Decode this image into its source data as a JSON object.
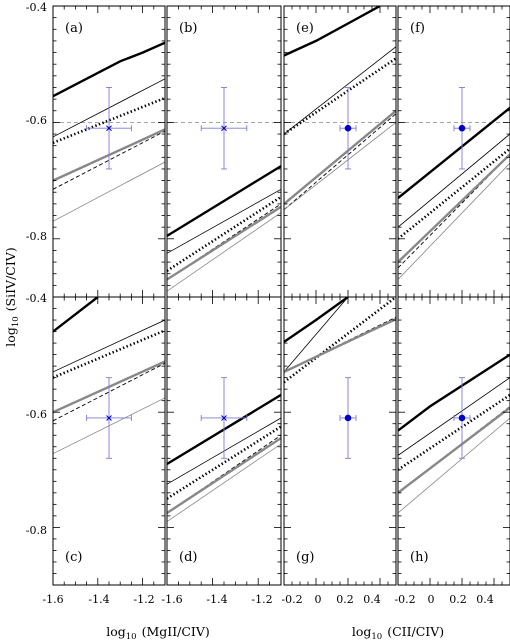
{
  "figure": {
    "ylabel": "log10 (SiIV/CIV)",
    "ylabel_parts": {
      "prefix": "log",
      "sub": "10",
      "rest": "(SiIV/CIV)"
    },
    "xlabel_left": {
      "prefix": "log",
      "sub": "10",
      "rest": "(MgII/CIV)"
    },
    "xlabel_right": {
      "prefix": "log",
      "sub": "10",
      "rest": "(CII/CIV)"
    }
  },
  "chart_data": [
    {
      "type": "line",
      "label": "(a)",
      "col": 0,
      "row": 0,
      "xlim": [
        -1.6,
        -1.1
      ],
      "ylim": [
        -0.9,
        -0.4
      ],
      "series": [
        {
          "style": "thick-black",
          "x": [
            -1.6,
            -1.5,
            -1.4,
            -1.3,
            -1.2,
            -1.1
          ],
          "y": [
            -0.555,
            -0.535,
            -0.515,
            -0.495,
            -0.48,
            -0.463
          ]
        },
        {
          "style": "thin-black",
          "x": [
            -1.6,
            -1.1
          ],
          "y": [
            -0.625,
            -0.525
          ]
        },
        {
          "style": "dotted-black",
          "x": [
            -1.6,
            -1.1
          ],
          "y": [
            -0.635,
            -0.558
          ]
        },
        {
          "style": "dashed-black",
          "x": [
            -1.6,
            -1.1
          ],
          "y": [
            -0.715,
            -0.615
          ]
        },
        {
          "style": "thick-gray",
          "x": [
            -1.6,
            -1.1
          ],
          "y": [
            -0.7,
            -0.612
          ]
        },
        {
          "style": "thin-gray",
          "x": [
            -1.6,
            -1.1
          ],
          "y": [
            -0.77,
            -0.668
          ]
        }
      ],
      "points": [
        {
          "x": -1.35,
          "y": -0.61,
          "xerr": 0.1,
          "yerr": 0.07,
          "marker": "cross"
        }
      ],
      "reference_y": -0.6
    },
    {
      "type": "line",
      "label": "(b)",
      "col": 1,
      "row": 0,
      "xlim": [
        -1.6,
        -1.1
      ],
      "ylim": [
        -0.9,
        -0.4
      ],
      "series": [
        {
          "style": "thick-black",
          "x": [
            -1.6,
            -1.1
          ],
          "y": [
            -0.795,
            -0.675
          ]
        },
        {
          "style": "thin-black",
          "x": [
            -1.6,
            -1.1
          ],
          "y": [
            -0.825,
            -0.715
          ]
        },
        {
          "style": "dotted-black",
          "x": [
            -1.6,
            -1.1
          ],
          "y": [
            -0.855,
            -0.728
          ]
        },
        {
          "style": "dashed-black",
          "x": [
            -1.6,
            -1.1
          ],
          "y": [
            -0.87,
            -0.74
          ]
        },
        {
          "style": "thick-gray",
          "x": [
            -1.6,
            -1.1
          ],
          "y": [
            -0.87,
            -0.745
          ]
        },
        {
          "style": "thin-gray",
          "x": [
            -1.6,
            -1.1
          ],
          "y": [
            -0.89,
            -0.755
          ]
        }
      ],
      "points": [
        {
          "x": -1.35,
          "y": -0.61,
          "xerr": 0.1,
          "yerr": 0.07,
          "marker": "cross"
        }
      ],
      "reference_y": -0.6
    },
    {
      "type": "line",
      "label": "(e)",
      "col": 2,
      "row": 0,
      "xlim": [
        -0.2,
        0.5
      ],
      "ylim": [
        -0.9,
        -0.4
      ],
      "series": [
        {
          "style": "thick-black",
          "x": [
            -0.2,
            0.0,
            0.2,
            0.4
          ],
          "y": [
            -0.485,
            -0.46,
            -0.43,
            -0.4
          ]
        },
        {
          "style": "thin-black",
          "x": [
            -0.2,
            0.5
          ],
          "y": [
            -0.62,
            -0.47
          ]
        },
        {
          "style": "dotted-black",
          "x": [
            -0.2,
            0.5
          ],
          "y": [
            -0.62,
            -0.49
          ]
        },
        {
          "style": "dashed-black",
          "x": [
            -0.2,
            0.5
          ],
          "y": [
            -0.75,
            -0.585
          ]
        },
        {
          "style": "thick-gray",
          "x": [
            -0.2,
            0.5
          ],
          "y": [
            -0.74,
            -0.58
          ]
        },
        {
          "style": "thin-gray",
          "x": [
            -0.2,
            0.5
          ],
          "y": [
            -0.75,
            -0.6
          ]
        }
      ],
      "points": [
        {
          "x": 0.2,
          "y": -0.61,
          "xerr": 0.05,
          "yerr": 0.07,
          "marker": "filled-dot"
        }
      ],
      "reference_y": -0.6
    },
    {
      "type": "line",
      "label": "(f)",
      "col": 3,
      "row": 0,
      "xlim": [
        -0.2,
        0.5
      ],
      "ylim": [
        -0.9,
        -0.4
      ],
      "series": [
        {
          "style": "thick-black",
          "x": [
            -0.2,
            0.5
          ],
          "y": [
            -0.73,
            -0.575
          ]
        },
        {
          "style": "thin-black",
          "x": [
            -0.2,
            0.5
          ],
          "y": [
            -0.78,
            -0.62
          ]
        },
        {
          "style": "dotted-black",
          "x": [
            -0.2,
            0.5
          ],
          "y": [
            -0.8,
            -0.645
          ]
        },
        {
          "style": "dashed-black",
          "x": [
            -0.2,
            0.5
          ],
          "y": [
            -0.85,
            -0.655
          ]
        },
        {
          "style": "thick-gray",
          "x": [
            -0.2,
            0.5
          ],
          "y": [
            -0.84,
            -0.655
          ]
        },
        {
          "style": "thin-gray",
          "x": [
            -0.2,
            0.5
          ],
          "y": [
            -0.87,
            -0.67
          ]
        }
      ],
      "points": [
        {
          "x": 0.2,
          "y": -0.61,
          "xerr": 0.05,
          "yerr": 0.07,
          "marker": "filled-dot"
        }
      ],
      "reference_y": -0.6
    },
    {
      "type": "line",
      "label": "(c)",
      "col": 0,
      "row": 1,
      "xlim": [
        -1.6,
        -1.1
      ],
      "ylim": [
        -0.9,
        -0.4
      ],
      "series": [
        {
          "style": "thick-black",
          "x": [
            -1.6,
            -1.5,
            -1.4
          ],
          "y": [
            -0.46,
            -0.43,
            -0.4
          ]
        },
        {
          "style": "thin-black",
          "x": [
            -1.6,
            -1.1
          ],
          "y": [
            -0.53,
            -0.44
          ]
        },
        {
          "style": "dotted-black",
          "x": [
            -1.6,
            -1.1
          ],
          "y": [
            -0.54,
            -0.458
          ]
        },
        {
          "style": "dashed-black",
          "x": [
            -1.6,
            -1.1
          ],
          "y": [
            -0.615,
            -0.515
          ]
        },
        {
          "style": "thick-gray",
          "x": [
            -1.6,
            -1.1
          ],
          "y": [
            -0.6,
            -0.512
          ]
        },
        {
          "style": "thin-gray",
          "x": [
            -1.6,
            -1.1
          ],
          "y": [
            -0.672,
            -0.575
          ]
        }
      ],
      "points": [
        {
          "x": -1.35,
          "y": -0.61,
          "xerr": 0.1,
          "yerr": 0.07,
          "marker": "cross"
        }
      ],
      "xticks": [
        -1.6,
        -1.4,
        -1.2
      ]
    },
    {
      "type": "line",
      "label": "(d)",
      "col": 1,
      "row": 1,
      "xlim": [
        -1.6,
        -1.1
      ],
      "ylim": [
        -0.9,
        -0.4
      ],
      "series": [
        {
          "style": "thick-black",
          "x": [
            -1.6,
            -1.1
          ],
          "y": [
            -0.69,
            -0.57
          ]
        },
        {
          "style": "thin-black",
          "x": [
            -1.6,
            -1.1
          ],
          "y": [
            -0.725,
            -0.61
          ]
        },
        {
          "style": "dotted-black",
          "x": [
            -1.6,
            -1.1
          ],
          "y": [
            -0.75,
            -0.625
          ]
        },
        {
          "style": "dashed-black",
          "x": [
            -1.6,
            -1.1
          ],
          "y": [
            -0.775,
            -0.64
          ]
        },
        {
          "style": "thick-gray",
          "x": [
            -1.6,
            -1.1
          ],
          "y": [
            -0.775,
            -0.645
          ]
        },
        {
          "style": "thin-gray",
          "x": [
            -1.6,
            -1.1
          ],
          "y": [
            -0.79,
            -0.655
          ]
        }
      ],
      "points": [
        {
          "x": -1.35,
          "y": -0.61,
          "xerr": 0.1,
          "yerr": 0.07,
          "marker": "cross"
        }
      ],
      "xticks": [
        -1.6,
        -1.4,
        -1.2
      ]
    },
    {
      "type": "line",
      "label": "(g)",
      "col": 2,
      "row": 1,
      "xlim": [
        -0.2,
        0.5
      ],
      "ylim": [
        -0.9,
        -0.4
      ],
      "series": [
        {
          "style": "thick-black",
          "x": [
            -0.2,
            0.0,
            0.2
          ],
          "y": [
            -0.478,
            -0.44,
            -0.4
          ]
        },
        {
          "style": "thin-black",
          "x": [
            -0.2,
            0.2
          ],
          "y": [
            -0.53,
            -0.4
          ]
        },
        {
          "style": "dotted-black",
          "x": [
            -0.2,
            0.5
          ],
          "y": [
            -0.548,
            -0.4
          ]
        },
        {
          "style": "dashed-black",
          "x": [
            -0.2,
            0.5
          ],
          "y": [
            -0.53,
            -0.435
          ]
        },
        {
          "style": "thick-gray",
          "x": [
            -0.2,
            0.5
          ],
          "y": [
            -0.53,
            -0.438
          ]
        },
        {
          "style": "thin-gray",
          "x": [
            -0.2,
            0.5
          ],
          "y": [
            -0.53,
            -0.44
          ]
        }
      ],
      "points": [
        {
          "x": 0.2,
          "y": -0.61,
          "xerr": 0.05,
          "yerr": 0.07,
          "marker": "filled-dot"
        }
      ],
      "xticks": [
        -0.2,
        0.0,
        0.2,
        0.4
      ]
    },
    {
      "type": "line",
      "label": "(h)",
      "col": 3,
      "row": 1,
      "xlim": [
        -0.2,
        0.5
      ],
      "ylim": [
        -0.9,
        -0.4
      ],
      "series": [
        {
          "style": "thick-black",
          "x": [
            -0.2,
            0.0,
            0.5
          ],
          "y": [
            -0.632,
            -0.59,
            -0.5
          ]
        },
        {
          "style": "thin-black",
          "x": [
            -0.2,
            0.5
          ],
          "y": [
            -0.675,
            -0.54
          ]
        },
        {
          "style": "dotted-black",
          "x": [
            -0.2,
            0.5
          ],
          "y": [
            -0.7,
            -0.57
          ]
        },
        {
          "style": "dashed-black",
          "x": [
            -0.2,
            0.5
          ],
          "y": [
            -0.74,
            -0.59
          ]
        },
        {
          "style": "thick-gray",
          "x": [
            -0.2,
            0.5
          ],
          "y": [
            -0.74,
            -0.592
          ]
        },
        {
          "style": "thin-gray",
          "x": [
            -0.2,
            0.5
          ],
          "y": [
            -0.775,
            -0.61
          ]
        }
      ],
      "points": [
        {
          "x": 0.2,
          "y": -0.61,
          "xerr": 0.05,
          "yerr": 0.07,
          "marker": "filled-dot"
        }
      ],
      "xticks": [
        -0.2,
        0.0,
        0.2,
        0.4
      ]
    }
  ],
  "tick_labels": {
    "y": [
      "-0.4",
      "-0.6",
      "-0.8",
      "-0.4",
      "-0.6",
      "-0.8"
    ],
    "x_left": [
      "-1.6",
      "-1.4",
      "-1.2",
      "-1.6",
      "-1.4",
      "-1.2"
    ],
    "x_right": [
      "-0.2",
      "0",
      "0.2",
      "0.4",
      "-0.2",
      "0",
      "0.2",
      "0.4"
    ]
  },
  "styles": {
    "thick-black": {
      "color": "#000000",
      "width": 2.4,
      "dash": ""
    },
    "thin-black": {
      "color": "#000000",
      "width": 0.8,
      "dash": ""
    },
    "dotted-black": {
      "color": "#000000",
      "width": 2.6,
      "dash": "1.4 2.4"
    },
    "dashed-black": {
      "color": "#000000",
      "width": 0.9,
      "dash": "4 2.5"
    },
    "thick-gray": {
      "color": "#888888",
      "width": 2.4,
      "dash": ""
    },
    "thin-gray": {
      "color": "#888888",
      "width": 0.8,
      "dash": ""
    }
  },
  "colors": {
    "errorbar": "#7b7bd9",
    "dot": "#0000cc",
    "reference_line": "#999999",
    "axis": "#000000"
  }
}
